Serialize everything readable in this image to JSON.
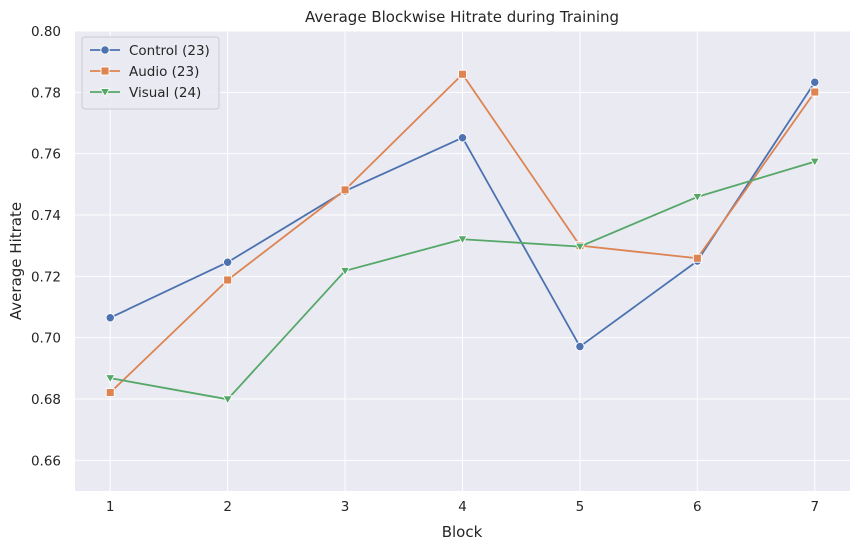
{
  "chart_data": {
    "type": "line",
    "title": "Average Blockwise Hitrate during Training",
    "xlabel": "Block",
    "ylabel": "Average Hitrate",
    "x": [
      1,
      2,
      3,
      4,
      5,
      6,
      7
    ],
    "xticks": [
      "1",
      "2",
      "3",
      "4",
      "5",
      "6",
      "7"
    ],
    "yticks": [
      "0.66",
      "0.68",
      "0.70",
      "0.72",
      "0.74",
      "0.76",
      "0.78",
      "0.80"
    ],
    "ylim": [
      0.65,
      0.8
    ],
    "xlim": [
      0.7,
      7.3
    ],
    "grid": true,
    "legend_position": "top-left",
    "background_color": "#eaeaf2",
    "series": [
      {
        "name": "Control (23)",
        "color": "#4c72b0",
        "marker": "circle",
        "values": [
          0.7065,
          0.7246,
          0.7478,
          0.7652,
          0.6971,
          0.725,
          0.7833
        ]
      },
      {
        "name": "Audio (23)",
        "color": "#dd8452",
        "marker": "square",
        "values": [
          0.6821,
          0.7188,
          0.7482,
          0.7859,
          0.73,
          0.7259,
          0.7801
        ]
      },
      {
        "name": "Visual (24)",
        "color": "#55a868",
        "marker": "triangle-down",
        "values": [
          0.6868,
          0.6799,
          0.7218,
          0.7321,
          0.7297,
          0.7459,
          0.7574
        ]
      }
    ]
  }
}
